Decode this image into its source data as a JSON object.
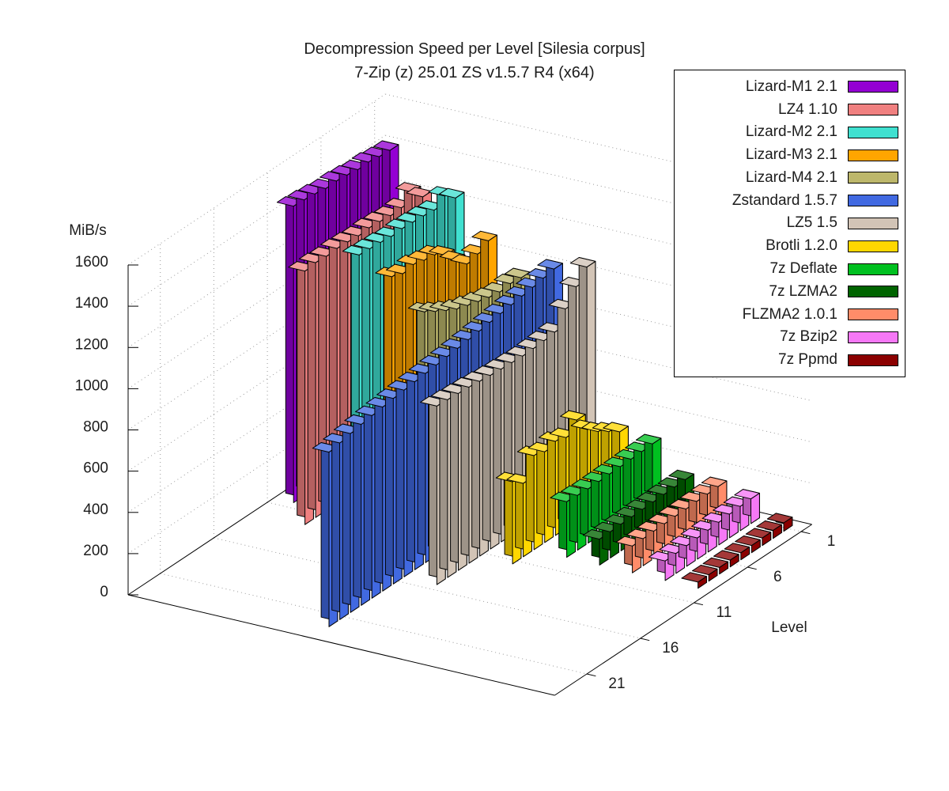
{
  "chart_data": {
    "type": "bar",
    "projection": "3d",
    "title": "Decompression Speed per Level [Silesia corpus]",
    "subtitle": "7-Zip (z) 25.01 ZS v1.5.7 R4 (x64)",
    "ylabel": "MiB/s",
    "xlabel": "Level",
    "ylim": [
      0,
      1600
    ],
    "level_axis_range": [
      0,
      24
    ],
    "y_ticks": [
      0,
      200,
      400,
      600,
      800,
      1000,
      1200,
      1400,
      1600
    ],
    "level_ticks": [
      1,
      6,
      11,
      16,
      21
    ],
    "grid": true,
    "legend_position": "top-right",
    "series": [
      {
        "name": "Lizard-M1 2.1",
        "color": "#9400d3",
        "levels": [
          1,
          2,
          3,
          4,
          5,
          6,
          7,
          8,
          9,
          10
        ],
        "values": [
          1398,
          1402,
          1410,
          1408,
          1416,
          1422,
          1420,
          1428,
          1434,
          1438
        ]
      },
      {
        "name": "LZ4 1.10",
        "color": "#f08080",
        "levels": [
          1,
          2,
          3,
          4,
          5,
          6,
          7,
          8,
          9,
          10,
          11,
          12
        ],
        "values": [
          1210,
          1268,
          1226,
          1222,
          1228,
          1232,
          1228,
          1233,
          1236,
          1232,
          1236,
          1230
        ]
      },
      {
        "name": "Lizard-M2 2.1",
        "color": "#40e0d0",
        "levels": [
          1,
          2,
          3,
          4,
          5,
          6,
          7,
          8,
          9,
          10
        ],
        "values": [
          1242,
          1286,
          1252,
          1258,
          1262,
          1266,
          1262,
          1268,
          1272,
          1276
        ]
      },
      {
        "name": "Lizard-M3 2.1",
        "color": "#ffa500",
        "levels": [
          1,
          2,
          3,
          4,
          5,
          6,
          7,
          8,
          9,
          10
        ],
        "values": [
          1072,
          1042,
          1028,
          1080,
          1140,
          1176,
          1184,
          1198,
          1188,
          1208
        ]
      },
      {
        "name": "Lizard-M4 2.1",
        "color": "#bdb76b",
        "levels": [
          1,
          2,
          3,
          4,
          5,
          6,
          7,
          8,
          9,
          10
        ],
        "values": [
          930,
          936,
          930,
          938,
          952,
          968,
          985,
          1012,
          1042,
          1075
        ]
      },
      {
        "name": "Zstandard 1.5.7",
        "color": "#4169e1",
        "levels": [
          1,
          2,
          3,
          4,
          5,
          6,
          7,
          8,
          9,
          10,
          11,
          12,
          13,
          14,
          15,
          16,
          17,
          18,
          19,
          20,
          21,
          22
        ],
        "values": [
          1010,
          1000,
          990,
          982,
          974,
          966,
          958,
          950,
          943,
          936,
          930,
          924,
          918,
          912,
          906,
          900,
          893,
          886,
          878,
          868,
          857,
          847
        ]
      },
      {
        "name": "LZ5 1.5",
        "color": "#d2c4b6",
        "levels": [
          1,
          2,
          3,
          4,
          5,
          6,
          7,
          8,
          9,
          10,
          11,
          12,
          13,
          14,
          15
        ],
        "values": [
          1057,
          996,
          923,
          845,
          838,
          834,
          832,
          835,
          838,
          842,
          848,
          854,
          858,
          862,
          866
        ]
      },
      {
        "name": "Brotli 1.2.0",
        "color": "#ffd700",
        "levels": [
          1,
          2,
          3,
          4,
          5,
          6,
          7,
          8,
          9,
          10,
          11
        ],
        "values": [
          295,
          330,
          365,
          410,
          490,
          440,
          456,
          440,
          456,
          356,
          398
        ]
      },
      {
        "name": "7z Deflate",
        "color": "#00c020",
        "levels": [
          1,
          2,
          3,
          4,
          5,
          6,
          7,
          8,
          9
        ],
        "values": [
          274,
          271,
          269,
          267,
          266,
          264,
          263,
          266,
          270
        ]
      },
      {
        "name": "7z LZMA2",
        "color": "#006400",
        "levels": [
          1,
          2,
          3,
          4,
          5,
          6,
          7,
          8,
          9
        ],
        "values": [
          138,
          136,
          135,
          133,
          132,
          130,
          129,
          127,
          126
        ]
      },
      {
        "name": "FLZMA2 1.0.1",
        "color": "#ff8c69",
        "levels": [
          1,
          2,
          3,
          4,
          5,
          6,
          7,
          8,
          9
        ],
        "values": [
          142,
          140,
          139,
          137,
          136,
          134,
          133,
          131,
          130
        ]
      },
      {
        "name": "7z Bzip2",
        "color": "#f678f6",
        "levels": [
          1,
          2,
          3,
          4,
          5,
          6,
          7,
          8,
          9
        ],
        "values": [
          120,
          118,
          115,
          110,
          106,
          103,
          100,
          97,
          95
        ]
      },
      {
        "name": "7z Ppmd",
        "color": "#8b0000",
        "levels": [
          1,
          2,
          3,
          4,
          5,
          6,
          7,
          8,
          9
        ],
        "values": [
          41,
          39,
          37,
          35,
          34,
          33,
          32,
          31,
          30
        ]
      }
    ]
  },
  "colors": {
    "background": "#ffffff",
    "grid": "#9a9a9a",
    "axis": "#000000",
    "text": "#1c1c1c"
  }
}
